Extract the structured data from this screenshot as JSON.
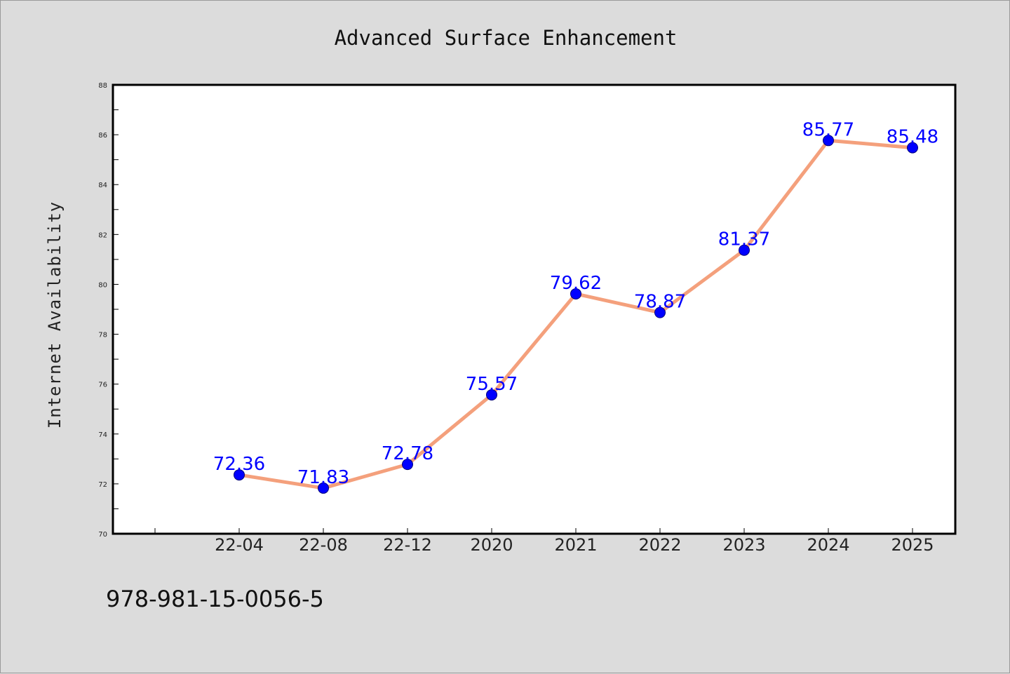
{
  "chart_data": {
    "type": "line",
    "title": "Advanced Surface Enhancement",
    "xlabel": "",
    "ylabel": "Internet Availability",
    "categories": [
      "22-04",
      "22-08",
      "22-12",
      "2020",
      "2021",
      "2022",
      "2023",
      "2024",
      "2025"
    ],
    "series": [
      {
        "values": [
          72.36,
          71.83,
          72.78,
          75.57,
          79.62,
          78.87,
          81.37,
          85.77,
          85.48
        ],
        "data_labels": [
          "72.36",
          "71.83",
          "72.78",
          "75.57",
          "79.62",
          "78.87",
          "81.37",
          "85.77",
          "85.48"
        ]
      }
    ],
    "ylim": [
      70,
      88
    ],
    "yticks": [
      "70",
      "72",
      "74",
      "76",
      "78",
      "80",
      "82",
      "84",
      "86",
      "88"
    ],
    "grid": false,
    "legend": "none",
    "colors": {
      "line": "#f4a07c",
      "marker": "#0000ff",
      "data_label": "#0000ff",
      "plot_background": "#ffffff",
      "page_background": "#dcdcdc"
    }
  },
  "footer": {
    "text": "978-981-15-0056-5"
  }
}
